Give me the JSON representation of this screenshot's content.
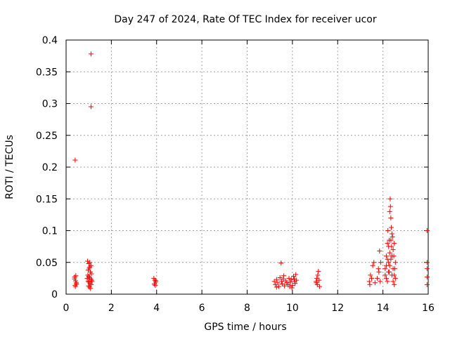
{
  "chart_data": {
    "type": "scatter",
    "title": "Day 247 of 2024, Rate Of TEC Index for receiver ucor",
    "xlabel": "GPS time / hours",
    "ylabel": "ROTI / TECUs",
    "xlim": [
      0,
      16
    ],
    "ylim": [
      0,
      0.4
    ],
    "xticks": [
      0,
      2,
      4,
      6,
      8,
      10,
      12,
      14,
      16
    ],
    "xtick_labels": [
      "0",
      "2",
      "4",
      "6",
      "8",
      "10",
      "12",
      "14",
      "16"
    ],
    "yticks": [
      0,
      0.05,
      0.1,
      0.15,
      0.2,
      0.25,
      0.3,
      0.35,
      0.4
    ],
    "ytick_labels": [
      "0",
      "0.05",
      "0.1",
      "0.15",
      "0.2",
      "0.25",
      "0.3",
      "0.35",
      "0.4"
    ],
    "grid": true,
    "marker": "+",
    "color": "#ff0000",
    "series": [
      {
        "name": "ROTI",
        "points": [
          [
            0.4,
            0.211
          ],
          [
            1.1,
            0.378
          ],
          [
            1.1,
            0.295
          ],
          [
            15.95,
            0.1
          ],
          [
            0.38,
            0.027
          ],
          [
            0.42,
            0.021
          ],
          [
            0.45,
            0.018
          ],
          [
            0.4,
            0.014
          ],
          [
            0.43,
            0.029
          ],
          [
            0.37,
            0.024
          ],
          [
            0.46,
            0.016
          ],
          [
            0.41,
            0.012
          ],
          [
            0.95,
            0.052
          ],
          [
            1.0,
            0.048
          ],
          [
            1.05,
            0.05
          ],
          [
            1.1,
            0.045
          ],
          [
            1.02,
            0.041
          ],
          [
            0.98,
            0.038
          ],
          [
            1.07,
            0.035
          ],
          [
            1.12,
            0.032
          ],
          [
            0.96,
            0.03
          ],
          [
            1.0,
            0.028
          ],
          [
            1.04,
            0.026
          ],
          [
            1.09,
            0.024
          ],
          [
            1.13,
            0.022
          ],
          [
            0.97,
            0.02
          ],
          [
            1.01,
            0.019
          ],
          [
            1.06,
            0.017
          ],
          [
            1.11,
            0.015
          ],
          [
            0.99,
            0.013
          ],
          [
            1.03,
            0.011
          ],
          [
            1.08,
            0.009
          ],
          [
            1.05,
            0.043
          ],
          [
            1.15,
            0.02
          ],
          [
            0.93,
            0.025
          ],
          [
            3.88,
            0.025
          ],
          [
            3.92,
            0.022
          ],
          [
            3.95,
            0.019
          ],
          [
            3.9,
            0.016
          ],
          [
            3.94,
            0.014
          ],
          [
            3.97,
            0.021
          ],
          [
            9.2,
            0.02
          ],
          [
            9.25,
            0.015
          ],
          [
            9.3,
            0.023
          ],
          [
            9.35,
            0.018
          ],
          [
            9.4,
            0.012
          ],
          [
            9.45,
            0.026
          ],
          [
            9.5,
            0.049
          ],
          [
            9.52,
            0.02
          ],
          [
            9.55,
            0.016
          ],
          [
            9.6,
            0.024
          ],
          [
            9.65,
            0.013
          ],
          [
            9.7,
            0.021
          ],
          [
            9.75,
            0.018
          ],
          [
            9.8,
            0.015
          ],
          [
            9.85,
            0.025
          ],
          [
            9.9,
            0.019
          ],
          [
            9.95,
            0.023
          ],
          [
            10.0,
            0.014
          ],
          [
            10.05,
            0.028
          ],
          [
            10.1,
            0.02
          ],
          [
            10.15,
            0.031
          ],
          [
            10.12,
            0.017
          ],
          [
            9.98,
            0.01
          ],
          [
            10.08,
            0.024
          ],
          [
            9.3,
            0.011
          ],
          [
            9.62,
            0.029
          ],
          [
            9.88,
            0.012
          ],
          [
            10.18,
            0.022
          ],
          [
            11.05,
            0.02
          ],
          [
            11.08,
            0.025
          ],
          [
            11.1,
            0.015
          ],
          [
            11.12,
            0.03
          ],
          [
            11.15,
            0.036
          ],
          [
            11.18,
            0.022
          ],
          [
            11.2,
            0.012
          ],
          [
            11.06,
            0.018
          ],
          [
            13.4,
            0.02
          ],
          [
            13.45,
            0.03
          ],
          [
            13.5,
            0.025
          ],
          [
            13.55,
            0.045
          ],
          [
            13.6,
            0.05
          ],
          [
            13.65,
            0.018
          ],
          [
            13.42,
            0.015
          ],
          [
            13.75,
            0.025
          ],
          [
            13.8,
            0.04
          ],
          [
            13.85,
            0.068
          ],
          [
            13.9,
            0.05
          ],
          [
            13.82,
            0.035
          ],
          [
            13.88,
            0.02
          ],
          [
            14.1,
            0.04
          ],
          [
            14.15,
            0.06
          ],
          [
            14.2,
            0.08
          ],
          [
            14.22,
            0.1
          ],
          [
            14.25,
            0.075
          ],
          [
            14.28,
            0.085
          ],
          [
            14.3,
            0.13
          ],
          [
            14.32,
            0.15
          ],
          [
            14.33,
            0.138
          ],
          [
            14.35,
            0.12
          ],
          [
            14.37,
            0.105
          ],
          [
            14.4,
            0.095
          ],
          [
            14.42,
            0.09
          ],
          [
            14.45,
            0.07
          ],
          [
            14.48,
            0.06
          ],
          [
            14.5,
            0.08
          ],
          [
            14.52,
            0.04
          ],
          [
            14.55,
            0.05
          ],
          [
            14.1,
            0.03
          ],
          [
            14.15,
            0.025
          ],
          [
            14.2,
            0.02
          ],
          [
            14.25,
            0.035
          ],
          [
            14.3,
            0.045
          ],
          [
            14.35,
            0.055
          ],
          [
            14.4,
            0.03
          ],
          [
            14.45,
            0.02
          ],
          [
            14.5,
            0.015
          ],
          [
            14.3,
            0.065
          ],
          [
            14.35,
            0.085
          ],
          [
            14.2,
            0.055
          ],
          [
            14.4,
            0.06
          ],
          [
            14.25,
            0.05
          ],
          [
            14.45,
            0.04
          ],
          [
            14.5,
            0.03
          ],
          [
            14.55,
            0.025
          ],
          [
            14.15,
            0.045
          ],
          [
            14.38,
            0.075
          ],
          [
            14.28,
            0.035
          ],
          [
            15.95,
            0.05
          ],
          [
            15.95,
            0.04
          ],
          [
            15.95,
            0.027
          ],
          [
            15.95,
            0.015
          ]
        ]
      }
    ]
  }
}
